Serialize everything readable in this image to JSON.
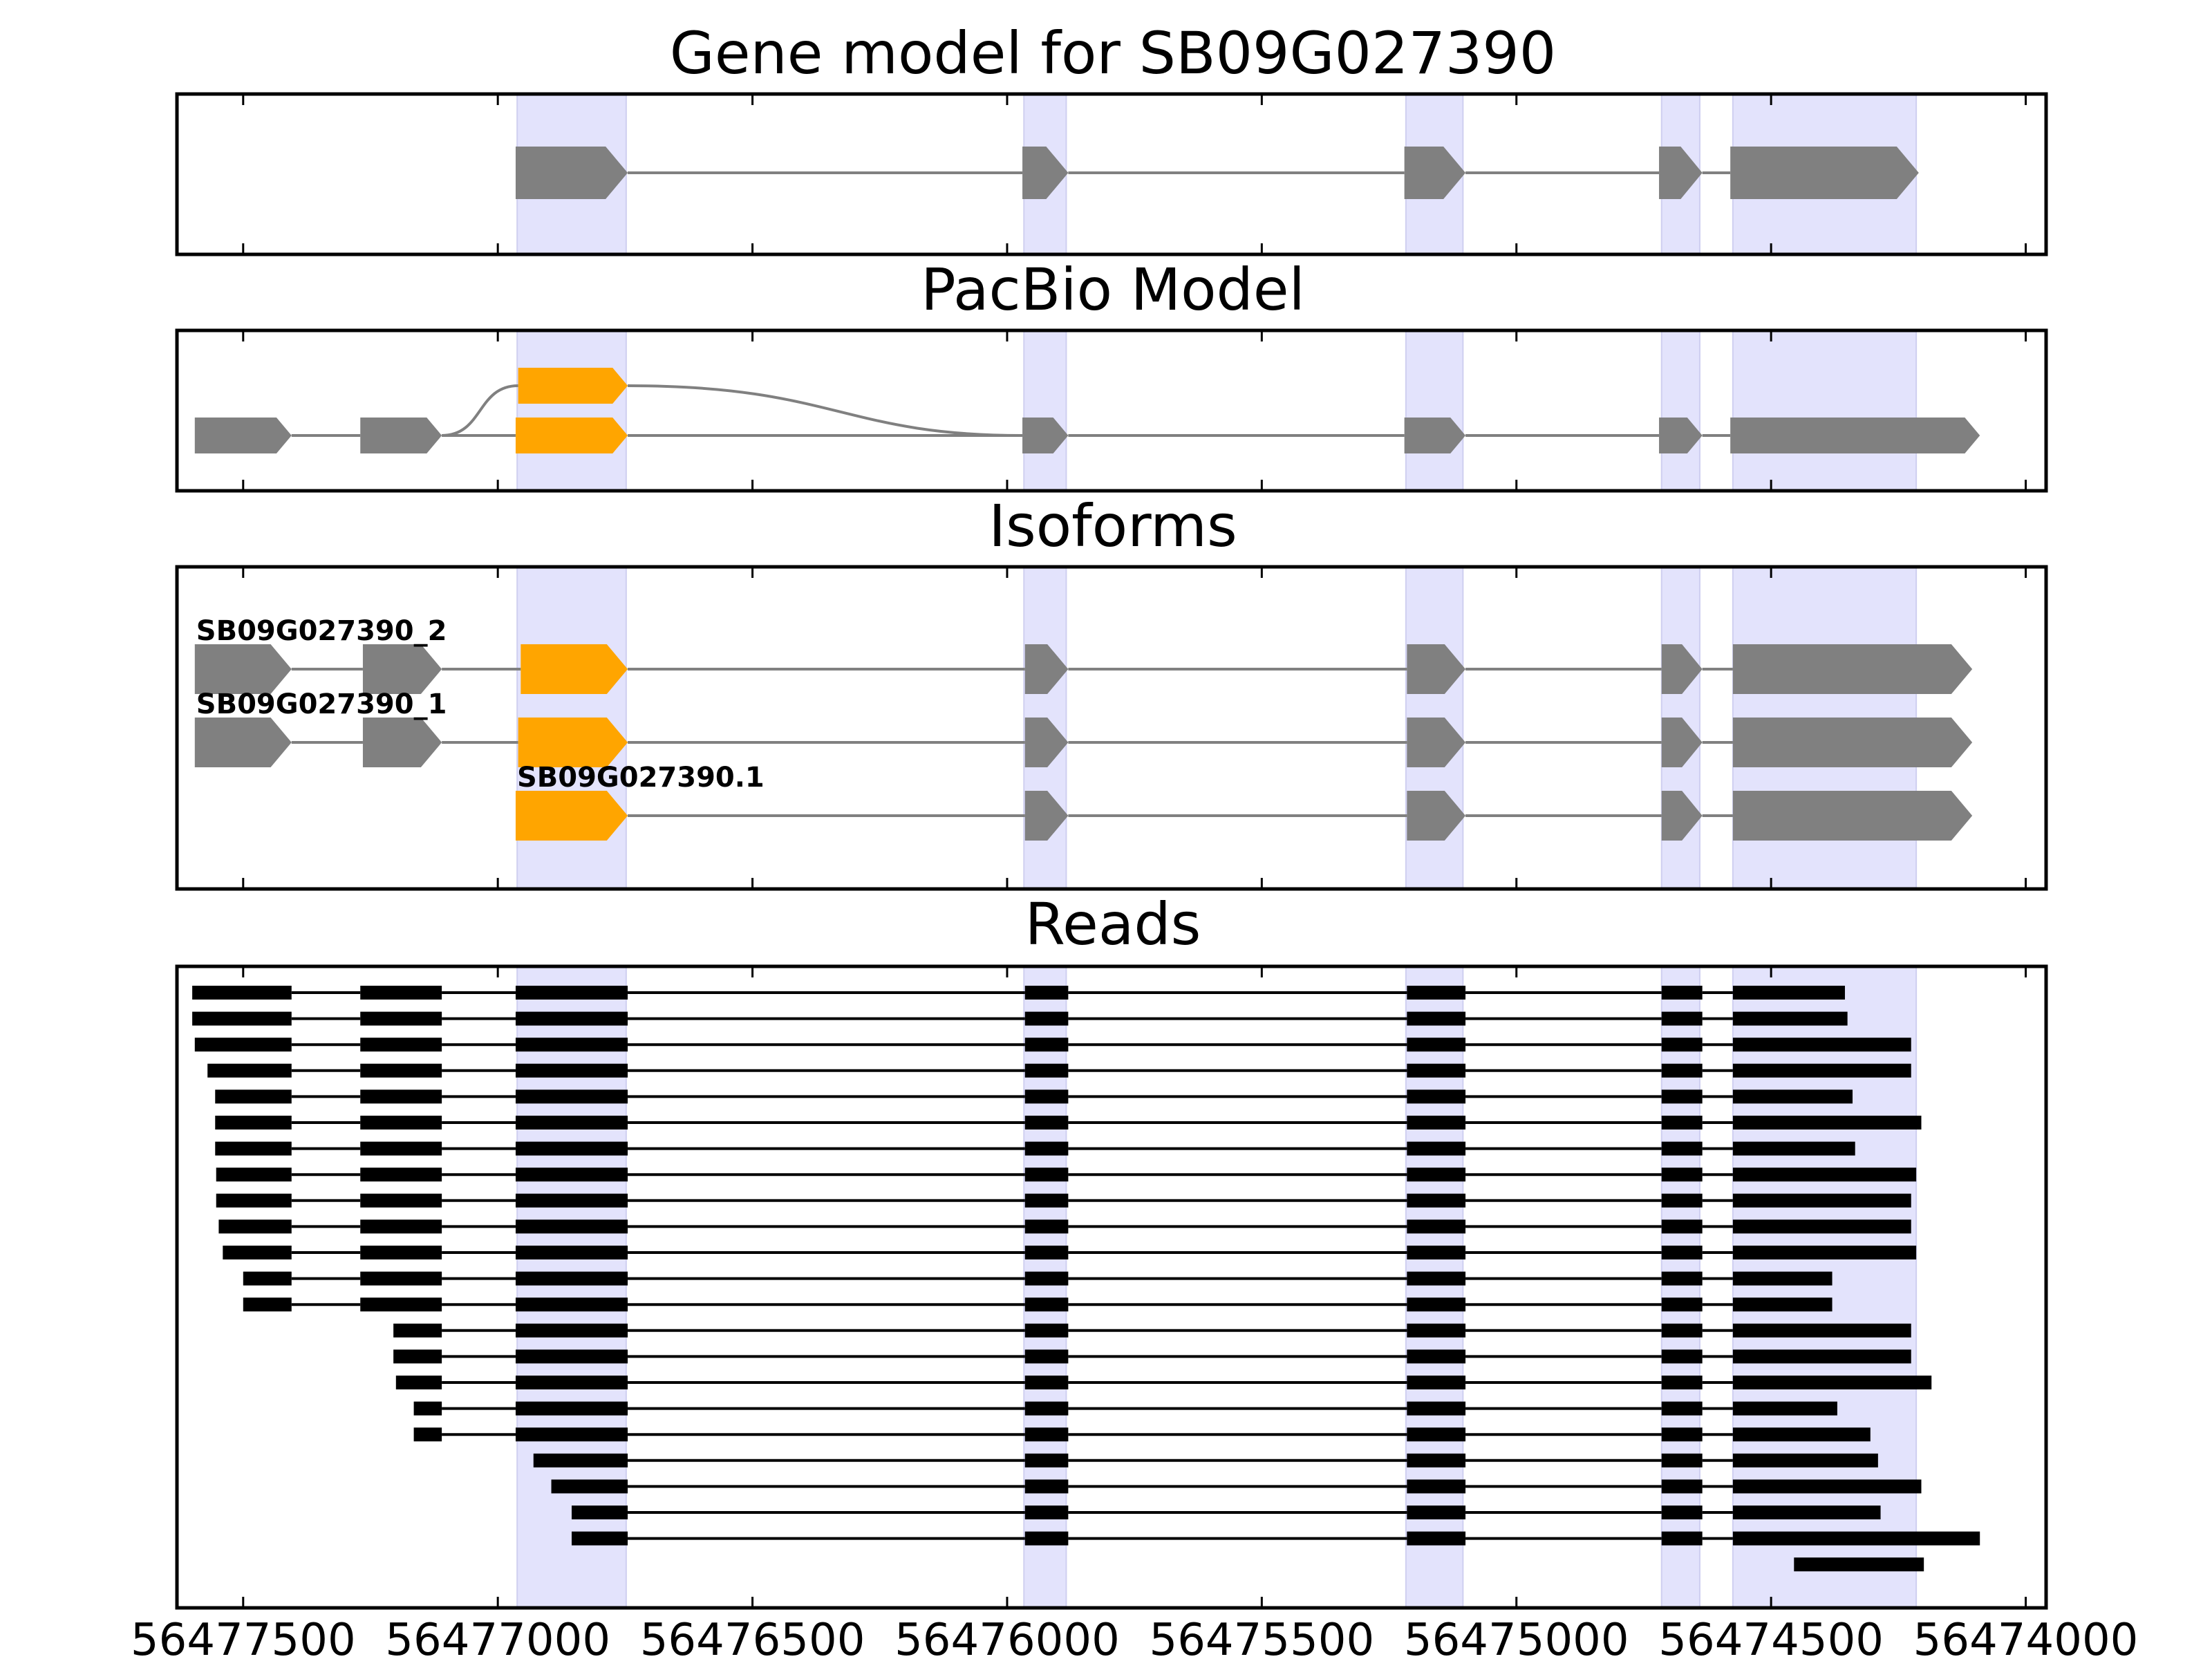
{
  "chart_data": {
    "type": "gene-model",
    "xaxis": {
      "range": [
        56477630,
        56473960
      ],
      "reversed": true,
      "ticks": [
        56477500,
        56477000,
        56476500,
        56476000,
        56475500,
        56475000,
        56474500,
        56474000
      ],
      "tick_labels": [
        "56477500",
        "56477000",
        "56476500",
        "56476000",
        "56475500",
        "56475000",
        "56474500",
        "56474000"
      ]
    },
    "highlight_color": "#e3e3fc",
    "colors": {
      "gene": "#808080",
      "highlight_exon": "#ffa500",
      "read": "#000000",
      "intron": "#808080",
      "frame": "#000000"
    },
    "highlights": [
      [
        56476962,
        56476748
      ],
      [
        56475967,
        56475884
      ],
      [
        56475217,
        56475105
      ],
      [
        56474715,
        56474640
      ],
      [
        56474575,
        56474215
      ]
    ],
    "panels": [
      {
        "title": "Gene model for SB09G027390",
        "rows": [
          {
            "exons": [
              [
                56476965,
                56476745
              ],
              [
                56475970,
                56475880
              ],
              [
                56475220,
                56475100
              ],
              [
                56474720,
                56474635
              ],
              [
                56474580,
                56474210
              ]
            ],
            "orange": []
          }
        ]
      },
      {
        "title": "PacBio Model",
        "rows": [
          {
            "exons": [
              [
                56477595,
                56477405
              ],
              [
                56477270,
                56477110
              ],
              [
                56476960,
                56476745
              ]
            ],
            "orange": [
              2
            ],
            "branch": true
          },
          {
            "exons": [
              [
                56477595,
                56477405
              ],
              [
                56477270,
                56477110
              ],
              [
                56476965,
                56476745
              ],
              [
                56475970,
                56475880
              ],
              [
                56475220,
                56475100
              ],
              [
                56474720,
                56474635
              ],
              [
                56474580,
                56474090
              ]
            ],
            "orange": [
              2
            ]
          }
        ]
      },
      {
        "title": "Isoforms",
        "rows": [
          {
            "label": "SB09G027390_2",
            "exons": [
              [
                56477595,
                56477405
              ],
              [
                56477265,
                56477110
              ],
              [
                56476955,
                56476745
              ],
              [
                56475965,
                56475880
              ],
              [
                56475215,
                56475100
              ],
              [
                56474715,
                56474635
              ],
              [
                56474575,
                56474105
              ]
            ],
            "orange": [
              2
            ]
          },
          {
            "label": "SB09G027390_1",
            "exons": [
              [
                56477595,
                56477405
              ],
              [
                56477265,
                56477110
              ],
              [
                56476960,
                56476745
              ],
              [
                56475965,
                56475880
              ],
              [
                56475215,
                56475100
              ],
              [
                56474715,
                56474635
              ],
              [
                56474575,
                56474105
              ]
            ],
            "orange": [
              2
            ]
          },
          {
            "label": "SB09G027390.1",
            "exons": [
              [
                56476965,
                56476745
              ],
              [
                56475965,
                56475880
              ],
              [
                56475215,
                56475100
              ],
              [
                56474715,
                56474635
              ],
              [
                56474575,
                56474105
              ]
            ],
            "orange": [
              0
            ]
          }
        ]
      },
      {
        "title": "Reads",
        "reads": [
          {
            "start": 56477600,
            "end": 56474355
          },
          {
            "start": 56477600,
            "end": 56474350
          },
          {
            "start": 56477595,
            "end": 56474225
          },
          {
            "start": 56477570,
            "end": 56474225
          },
          {
            "start": 56477555,
            "end": 56474340
          },
          {
            "start": 56477555,
            "end": 56474205
          },
          {
            "start": 56477555,
            "end": 56474335
          },
          {
            "start": 56477553,
            "end": 56474215
          },
          {
            "start": 56477553,
            "end": 56474225
          },
          {
            "start": 56477548,
            "end": 56474225
          },
          {
            "start": 56477540,
            "end": 56474215
          },
          {
            "start": 56477500,
            "end": 56474380
          },
          {
            "start": 56477500,
            "end": 56474380
          },
          {
            "start": 56477205,
            "end": 56474225
          },
          {
            "start": 56477205,
            "end": 56474225
          },
          {
            "start": 56477200,
            "end": 56474185
          },
          {
            "start": 56477165,
            "end": 56474370
          },
          {
            "start": 56477165,
            "end": 56474305
          },
          {
            "start": 56476930,
            "end": 56474290
          },
          {
            "start": 56476895,
            "end": 56474205
          },
          {
            "start": 56476855,
            "end": 56474285
          },
          {
            "start": 56476855,
            "end": 56474090
          },
          {
            "start": 56474455,
            "end": 56474200
          }
        ]
      }
    ],
    "read_exons": [
      [
        56477610,
        56477405
      ],
      [
        56477270,
        56477110
      ],
      [
        56476965,
        56476745
      ],
      [
        56475965,
        56475880
      ],
      [
        56475215,
        56475100
      ],
      [
        56474715,
        56474635
      ],
      [
        56474575,
        56474090
      ]
    ]
  }
}
